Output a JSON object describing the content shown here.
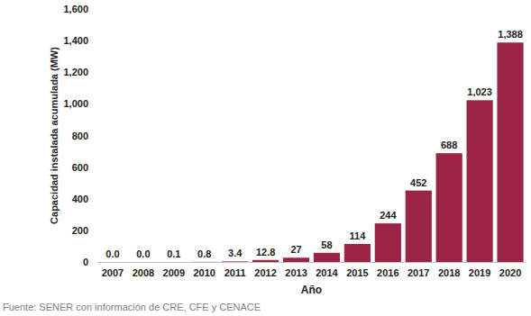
{
  "chart_data": {
    "type": "bar",
    "x_label": "Año",
    "y_label": "Capacidad instalada acumulada (MW)",
    "source": "Fuente:  SENER con información de CRE, CFE y CENACE",
    "categories": [
      "2007",
      "2008",
      "2009",
      "2010",
      "2011",
      "2012",
      "2013",
      "2014",
      "2015",
      "2016",
      "2017",
      "2018",
      "2019",
      "2020"
    ],
    "values": [
      0,
      0,
      0.1,
      0.8,
      3.4,
      12.8,
      27,
      58,
      114,
      244,
      452,
      688,
      1023,
      1388
    ],
    "value_labels": [
      "0.0",
      "0.0",
      "0.1",
      "0.8",
      "3.4",
      "12.8",
      "27",
      "58",
      "114",
      "244",
      "452",
      "688",
      "1,023",
      "1,388"
    ],
    "color": "#9b2346",
    "ylim": [
      0,
      1600
    ],
    "yticks": [
      0,
      200,
      400,
      600,
      800,
      {
        "value": 1000,
        "label": "1,000"
      },
      {
        "value": 1200,
        "label": "1,200"
      },
      {
        "value": 1400,
        "label": "1,400"
      },
      {
        "value": 1600,
        "label": "1,600"
      }
    ],
    "grid": false,
    "data_labels": true
  }
}
